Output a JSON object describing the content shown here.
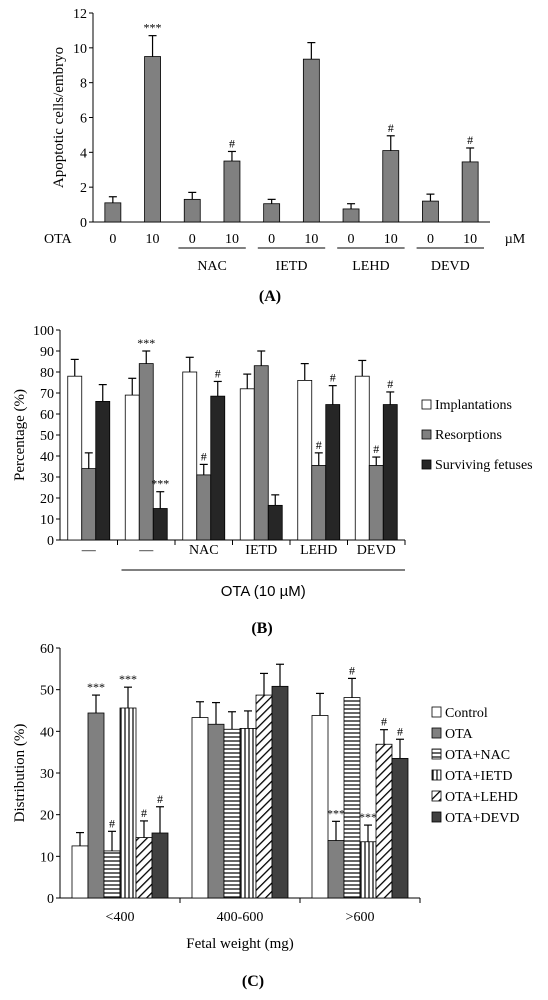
{
  "figure": {
    "panels": [
      "(A)",
      "(B)",
      "(C)"
    ]
  },
  "chart_data": [
    {
      "type": "bar",
      "panel_label": "(A)",
      "ylabel": "Apoptotic cells/embryo",
      "ylim": [
        0,
        12
      ],
      "yticks": [
        0,
        2,
        4,
        6,
        8,
        10,
        12
      ],
      "row_label": "OTA",
      "unit": "µM",
      "categories": [
        "0",
        "10",
        "0",
        "10",
        "0",
        "10",
        "0",
        "10",
        "0",
        "10"
      ],
      "groups": [
        {
          "name": "",
          "start": 0,
          "count": 2
        },
        {
          "name": "NAC",
          "start": 2,
          "count": 2
        },
        {
          "name": "IETD",
          "start": 4,
          "count": 2
        },
        {
          "name": "LEHD",
          "start": 6,
          "count": 2
        },
        {
          "name": "DEVD",
          "start": 8,
          "count": 2
        }
      ],
      "series": [
        {
          "values": [
            1.1,
            9.5,
            1.3,
            3.5,
            1.05,
            9.35,
            0.75,
            4.1,
            1.2,
            3.45
          ],
          "errors": [
            0.35,
            1.2,
            0.4,
            0.55,
            0.25,
            0.95,
            0.3,
            0.85,
            0.4,
            0.8
          ],
          "annotations": [
            "",
            "***",
            "",
            "#",
            "",
            "",
            "",
            "#",
            "",
            "#"
          ]
        }
      ],
      "color": "#808080",
      "grid": false
    },
    {
      "type": "bar",
      "panel_label": "(B)",
      "ylabel": "Percentage (%)",
      "ylim": [
        0,
        100
      ],
      "yticks": [
        0,
        10,
        20,
        30,
        40,
        50,
        60,
        70,
        80,
        90,
        100
      ],
      "categories": [
        "—",
        "—",
        "NAC",
        "IETD",
        "LEHD",
        "DEVD"
      ],
      "bracket_label": "OTA (10 µM)",
      "bracket_from": 1,
      "legend_position": "right",
      "series": [
        {
          "name": "Implantations",
          "color": "#ffffff",
          "values": [
            78,
            69,
            80,
            72,
            76,
            78
          ],
          "errors": [
            8,
            8,
            7,
            7,
            8,
            7.5
          ],
          "annotations": [
            "",
            "",
            "",
            "",
            "",
            ""
          ]
        },
        {
          "name": "Resorptions",
          "color": "#808080",
          "values": [
            34,
            84,
            31,
            83,
            35.5,
            35.5
          ],
          "errors": [
            7.5,
            6,
            5,
            7,
            6,
            4
          ],
          "annotations": [
            "",
            "***",
            "#",
            "",
            "#",
            "#"
          ]
        },
        {
          "name": "Surviving fetuses",
          "color": "#262626",
          "values": [
            66,
            15,
            68.5,
            16.5,
            64.5,
            64.5
          ],
          "errors": [
            8,
            8,
            7,
            5,
            9,
            6
          ],
          "annotations": [
            "",
            "***",
            "#",
            "",
            "#",
            "#"
          ]
        }
      ],
      "grid": false
    },
    {
      "type": "bar",
      "panel_label": "(C)",
      "ylabel": "Distribution (%)",
      "xlabel": "Fetal weight (mg)",
      "ylim": [
        0,
        60
      ],
      "yticks": [
        0,
        10,
        20,
        30,
        40,
        50,
        60
      ],
      "categories": [
        "<400",
        "400-600",
        ">600"
      ],
      "legend_position": "right",
      "series": [
        {
          "name": "Control",
          "color": "#ffffff",
          "pattern": "none",
          "values": [
            12.5,
            43.3,
            43.8
          ],
          "errors": [
            3.2,
            3.8,
            5.3
          ],
          "annotations": [
            "",
            "",
            ""
          ]
        },
        {
          "name": "OTA",
          "color": "#808080",
          "pattern": "none",
          "values": [
            44.4,
            41.7,
            13.8
          ],
          "errors": [
            4.3,
            5.2,
            4.6
          ],
          "annotations": [
            "***",
            "",
            "***"
          ]
        },
        {
          "name": "OTA+NAC",
          "color": "#ffffff",
          "pattern": "horizontal",
          "values": [
            11.3,
            40.5,
            48.1
          ],
          "errors": [
            4.7,
            4.2,
            4.6
          ],
          "annotations": [
            "#",
            "",
            "#"
          ]
        },
        {
          "name": "OTA+IETD",
          "color": "#ffffff",
          "pattern": "vertical",
          "values": [
            45.6,
            40.7,
            13.5
          ],
          "errors": [
            5.0,
            4.2,
            4.0
          ],
          "annotations": [
            "***",
            "",
            "***"
          ]
        },
        {
          "name": "OTA+LEHD",
          "color": "#ffffff",
          "pattern": "diagonal",
          "values": [
            14.5,
            48.7,
            36.9
          ],
          "errors": [
            4.0,
            5.2,
            3.5
          ],
          "annotations": [
            "#",
            "",
            "#"
          ]
        },
        {
          "name": "OTA+DEVD",
          "color": "#404040",
          "pattern": "none",
          "values": [
            15.6,
            50.8,
            33.5
          ],
          "errors": [
            6.3,
            5.3,
            4.6
          ],
          "annotations": [
            "#",
            "",
            "#"
          ]
        }
      ],
      "grid": false
    }
  ]
}
